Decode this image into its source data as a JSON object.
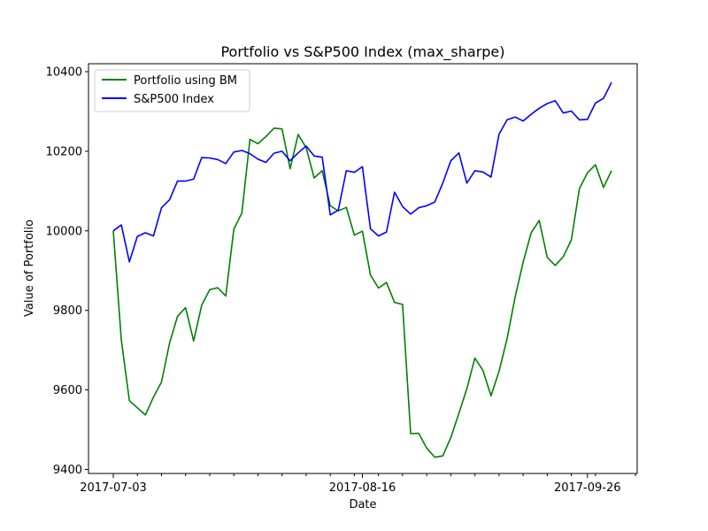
{
  "chart_data": {
    "type": "line",
    "title": "Portfolio vs S&P500 Index (max_sharpe)",
    "xlabel": "Date",
    "ylabel": "Value of Portfolio",
    "x_tick_labels": [
      "2017-07-03",
      "2017-08-16",
      "2017-09-26"
    ],
    "y_ticks": [
      9400,
      9600,
      9800,
      10000,
      10200,
      10400
    ],
    "ylim": [
      9390,
      10420
    ],
    "legend_position": "upper-left",
    "grid": false,
    "x": [
      "2017-07-03",
      "2017-07-05",
      "2017-07-06",
      "2017-07-07",
      "2017-07-10",
      "2017-07-11",
      "2017-07-12",
      "2017-07-13",
      "2017-07-14",
      "2017-07-17",
      "2017-07-18",
      "2017-07-19",
      "2017-07-20",
      "2017-07-21",
      "2017-07-24",
      "2017-07-25",
      "2017-07-26",
      "2017-07-27",
      "2017-07-28",
      "2017-07-31",
      "2017-08-01",
      "2017-08-02",
      "2017-08-03",
      "2017-08-04",
      "2017-08-07",
      "2017-08-08",
      "2017-08-09",
      "2017-08-10",
      "2017-08-11",
      "2017-08-14",
      "2017-08-15",
      "2017-08-16",
      "2017-08-17",
      "2017-08-18",
      "2017-08-21",
      "2017-08-22",
      "2017-08-23",
      "2017-08-24",
      "2017-08-25",
      "2017-08-28",
      "2017-08-29",
      "2017-08-30",
      "2017-08-31",
      "2017-09-01",
      "2017-09-05",
      "2017-09-06",
      "2017-09-07",
      "2017-09-08",
      "2017-09-11",
      "2017-09-12",
      "2017-09-13",
      "2017-09-14",
      "2017-09-15",
      "2017-09-18",
      "2017-09-19",
      "2017-09-20",
      "2017-09-21",
      "2017-09-22",
      "2017-09-25",
      "2017-09-26",
      "2017-09-27",
      "2017-09-28",
      "2017-09-29"
    ],
    "series": [
      {
        "name": "Portfolio using BM",
        "color": "#008000",
        "values": [
          10000,
          9725,
          9573,
          9555,
          9537,
          9582,
          9620,
          9718,
          9785,
          9807,
          9723,
          9813,
          9852,
          9857,
          9836,
          10004,
          10045,
          10230,
          10219,
          10237,
          10258,
          10256,
          10156,
          10242,
          10209,
          10133,
          10151,
          10063,
          10050,
          10059,
          9989,
          9999,
          9889,
          9856,
          9870,
          9820,
          9815,
          9490,
          9491,
          9454,
          9431,
          9434,
          9480,
          9541,
          9603,
          9680,
          9649,
          9585,
          9647,
          9729,
          9833,
          9921,
          9995,
          10026,
          9933,
          9913,
          9935,
          9977,
          10106,
          10146,
          10166,
          10109,
          10151
        ]
      },
      {
        "name": "S&P500 Index",
        "color": "#0000ff",
        "values": [
          10000,
          10015,
          9922,
          9986,
          9995,
          9987,
          10058,
          10078,
          10125,
          10125,
          10130,
          10184,
          10183,
          10179,
          10169,
          10198,
          10202,
          10194,
          10180,
          10172,
          10195,
          10200,
          10176,
          10196,
          10213,
          10188,
          10185,
          10040,
          10052,
          10151,
          10147,
          10161,
          10005,
          9987,
          9997,
          10097,
          10061,
          10042,
          10058,
          10063,
          10072,
          10120,
          10176,
          10196,
          10120,
          10151,
          10148,
          10135,
          10243,
          10279,
          10286,
          10276,
          10293,
          10308,
          10320,
          10327,
          10296,
          10301,
          10279,
          10280,
          10321,
          10333,
          10373
        ]
      }
    ]
  }
}
